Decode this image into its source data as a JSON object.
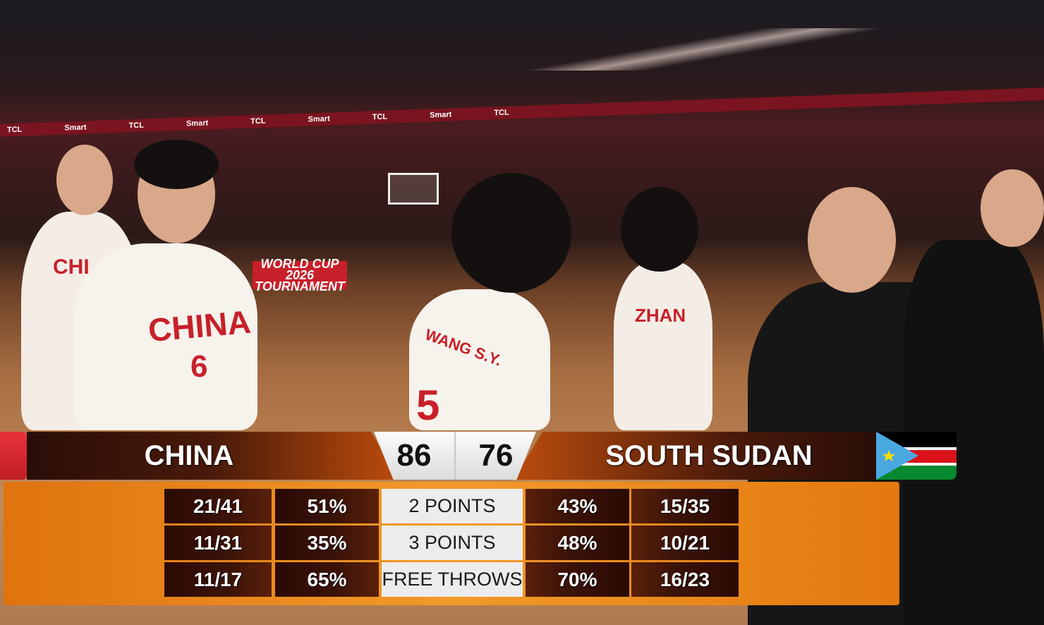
{
  "background": {
    "banner_text": [
      "TCL",
      "Smart",
      "TCL",
      "Smart",
      "TCL",
      "Smart",
      "TCL",
      "Smart",
      "TCL"
    ],
    "adboard": "WORLD CUP 2026 TOURNAMENT",
    "jersey_texts": [
      "CHINA",
      "6",
      "CHI",
      "ZHAN",
      "WANG S.Y.",
      "5"
    ]
  },
  "scoreboard": {
    "home": {
      "name": "CHINA",
      "score": "86",
      "color": "#e8333a"
    },
    "away": {
      "name": "SOUTH SUDAN",
      "score": "76",
      "flag_colors": [
        "#000000",
        "#da121a",
        "#078930",
        "#0f47af",
        "#fcdd09"
      ]
    },
    "stats": [
      {
        "label": "2 POINTS",
        "home_made": "21/41",
        "home_pct": "51%",
        "away_pct": "43%",
        "away_made": "15/35"
      },
      {
        "label": "3 POINTS",
        "home_made": "11/31",
        "home_pct": "35%",
        "away_pct": "48%",
        "away_made": "10/21"
      },
      {
        "label": "FREE THROWS",
        "home_made": "11/17",
        "home_pct": "65%",
        "away_pct": "70%",
        "away_made": "16/23"
      }
    ]
  }
}
